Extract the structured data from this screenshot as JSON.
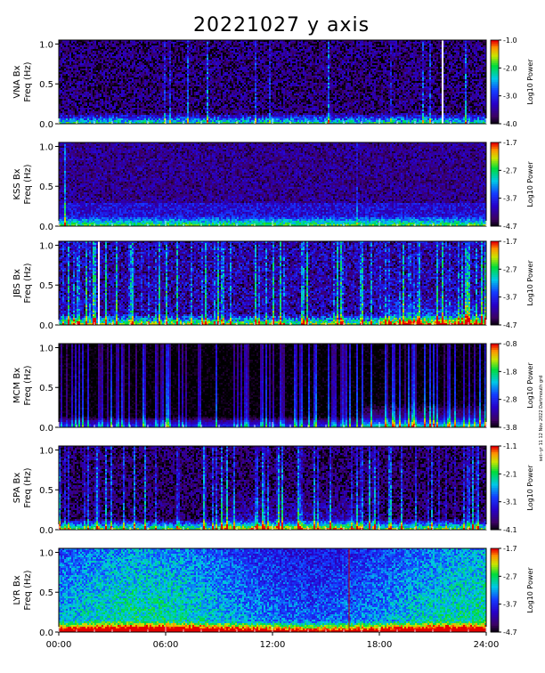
{
  "title": "20221027 y axis",
  "side_note": "set--yr 11 12 Nov 2022 Dartmouth grd",
  "chart_data": {
    "type": "heatmap",
    "title": "20221027 y axis",
    "xlabel": "",
    "x_ticks": [
      "00:00",
      "06:00",
      "12:00",
      "18:00",
      "24:00"
    ],
    "xlim_hours": [
      0,
      24
    ],
    "colorbar_label": "Log10 Power",
    "colormap": "rainbow (black-purple-blue-cyan-green-yellow-red)",
    "panels": [
      {
        "station": "VNA Bx",
        "ylabel_line1": "VNA Bx",
        "ylabel_line2": "Freq (Hz)",
        "y_ticks": [
          "1.0",
          "0.5",
          "0.0"
        ],
        "ylim": [
          0,
          1.05
        ],
        "cbar_ticks": [
          "-1.0",
          "-2.0",
          "-3.0",
          "-4.0"
        ],
        "cbar_range": [
          -4.0,
          -1.0
        ],
        "background_level": 0.12,
        "noise": 0.16,
        "low_freq_level": 0.5,
        "vertical_streaks": 0.08,
        "gap_hour": 21.5
      },
      {
        "station": "KSS Bx",
        "ylabel_line1": "KSS Bx",
        "ylabel_line2": "Freq (Hz)",
        "y_ticks": [
          "1.0",
          "0.5",
          "0.0"
        ],
        "ylim": [
          0,
          1.05
        ],
        "cbar_ticks": [
          "-1.7",
          "-2.7",
          "-3.7",
          "-4.7"
        ],
        "cbar_range": [
          -4.7,
          -1.7
        ],
        "background_level": 0.16,
        "noise": 0.12,
        "low_freq_level": 0.42,
        "vertical_streaks": 0.02
      },
      {
        "station": "JBS Bx",
        "ylabel_line1": "JBS Bx",
        "ylabel_line2": "Freq (Hz)",
        "y_ticks": [
          "1.0",
          "0.5",
          "0.0"
        ],
        "ylim": [
          0,
          1.05
        ],
        "cbar_ticks": [
          "-1.7",
          "-2.7",
          "-3.7",
          "-4.7"
        ],
        "cbar_range": [
          -4.7,
          -1.7
        ],
        "background_level": 0.2,
        "noise": 0.18,
        "low_freq_level": 0.55,
        "vertical_streaks": 0.3,
        "gap_hour": 2.2
      },
      {
        "station": "MCM Bx",
        "ylabel_line1": "MCM Bx",
        "ylabel_line2": "Freq (Hz)",
        "y_ticks": [
          "1.0",
          "0.5",
          "0.0"
        ],
        "ylim": [
          0,
          1.05
        ],
        "cbar_ticks": [
          "-0.8",
          "-1.8",
          "-2.8",
          "-3.8"
        ],
        "cbar_range": [
          -3.8,
          -0.8
        ],
        "background_level": 0.0,
        "noise": 0.05,
        "low_freq_level": 0.35,
        "vertical_streaks": 0.35
      },
      {
        "station": "SPA Bx",
        "ylabel_line1": "SPA Bx",
        "ylabel_line2": "Freq (Hz)",
        "y_ticks": [
          "1.0",
          "0.5",
          "0.0"
        ],
        "ylim": [
          0,
          1.05
        ],
        "cbar_ticks": [
          "-1.1",
          "-2.1",
          "-3.1",
          "-4.1"
        ],
        "cbar_range": [
          -4.1,
          -1.1
        ],
        "background_level": 0.1,
        "noise": 0.14,
        "low_freq_level": 0.6,
        "vertical_streaks": 0.25
      },
      {
        "station": "LYR Bx",
        "ylabel_line1": "LYR Bx",
        "ylabel_line2": "Freq (Hz)",
        "y_ticks": [
          "1.0",
          "0.5",
          "0.0"
        ],
        "ylim": [
          0,
          1.05
        ],
        "cbar_ticks": [
          "-1.7",
          "-2.7",
          "-3.7",
          "-4.7"
        ],
        "cbar_range": [
          -4.7,
          -1.7
        ],
        "background_level": 0.55,
        "noise": 0.12,
        "low_freq_level": 0.62,
        "vertical_streaks": 0.0,
        "line_hour": 16.3
      }
    ]
  }
}
